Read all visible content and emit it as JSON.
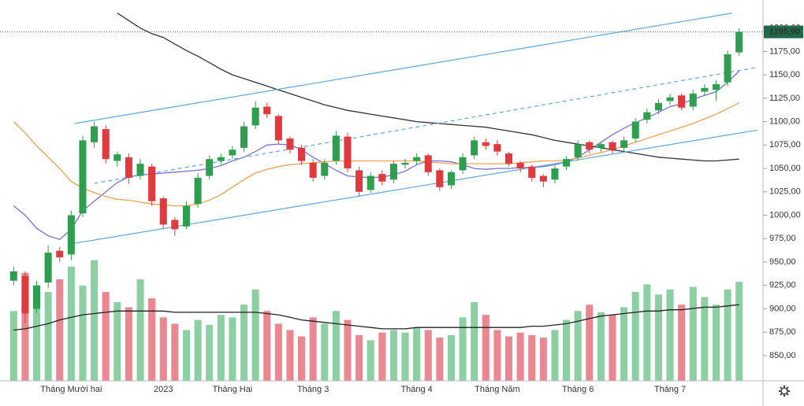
{
  "chart_data": {
    "type": "candlestick",
    "categories": [
      null,
      null,
      null,
      null,
      null,
      "Tháng Mười hai",
      null,
      null,
      null,
      null,
      null,
      null,
      null,
      "2023",
      null,
      null,
      null,
      null,
      null,
      "Tháng Hai",
      null,
      null,
      null,
      null,
      null,
      null,
      "Tháng 3",
      null,
      null,
      null,
      null,
      null,
      null,
      null,
      null,
      "Tháng 4",
      null,
      null,
      null,
      null,
      null,
      null,
      "Tháng Năm",
      null,
      null,
      null,
      null,
      null,
      null,
      "Tháng 6",
      null,
      null,
      null,
      null,
      null,
      null,
      null,
      "Tháng 7",
      null,
      null,
      null,
      null,
      null,
      null
    ],
    "open": [
      930,
      935,
      900,
      928,
      962,
      958,
      1002,
      1078,
      1092,
      1058,
      1062,
      1042,
      1052,
      1018,
      995,
      988,
      1012,
      1042,
      1058,
      1064,
      1072,
      1096,
      1116,
      1106,
      1082,
      1072,
      1056,
      1042,
      1058,
      1084,
      1048,
      1027,
      1044,
      1038,
      1054,
      1058,
      1064,
      1048,
      1032,
      1048,
      1064,
      1078,
      1076,
      1066,
      1056,
      1052,
      1042,
      1038,
      1052,
      1062,
      1078,
      1072,
      1078,
      1072,
      1082,
      1102,
      1112,
      1122,
      1128,
      1116,
      1132,
      1134,
      1142,
      1174
    ],
    "high": [
      945,
      940,
      930,
      968,
      966,
      1005,
      1085,
      1100,
      1096,
      1068,
      1066,
      1060,
      1055,
      1020,
      998,
      1015,
      1045,
      1064,
      1066,
      1074,
      1100,
      1122,
      1120,
      1108,
      1084,
      1075,
      1060,
      1060,
      1090,
      1088,
      1052,
      1046,
      1048,
      1058,
      1060,
      1066,
      1066,
      1050,
      1048,
      1066,
      1084,
      1082,
      1080,
      1068,
      1058,
      1054,
      1044,
      1053,
      1063,
      1080,
      1080,
      1078,
      1080,
      1084,
      1104,
      1114,
      1124,
      1130,
      1130,
      1134,
      1140,
      1144,
      1176,
      1200
    ],
    "low": [
      925,
      885,
      895,
      922,
      950,
      952,
      998,
      1072,
      1055,
      1052,
      1034,
      1038,
      1010,
      985,
      978,
      985,
      1008,
      1038,
      1054,
      1060,
      1068,
      1092,
      1104,
      1076,
      1066,
      1054,
      1036,
      1038,
      1054,
      1046,
      1020,
      1024,
      1032,
      1034,
      1050,
      1054,
      1042,
      1026,
      1028,
      1044,
      1060,
      1070,
      1064,
      1052,
      1046,
      1036,
      1030,
      1034,
      1048,
      1058,
      1066,
      1068,
      1066,
      1068,
      1078,
      1098,
      1108,
      1118,
      1112,
      1112,
      1128,
      1122,
      1138,
      1170
    ],
    "close": [
      940,
      895,
      925,
      960,
      955,
      1000,
      1080,
      1095,
      1060,
      1065,
      1040,
      1055,
      1015,
      990,
      985,
      1010,
      1040,
      1060,
      1062,
      1070,
      1095,
      1115,
      1108,
      1080,
      1070,
      1058,
      1040,
      1056,
      1085,
      1050,
      1025,
      1042,
      1036,
      1055,
      1056,
      1062,
      1046,
      1030,
      1046,
      1062,
      1080,
      1074,
      1068,
      1055,
      1050,
      1040,
      1036,
      1050,
      1060,
      1076,
      1070,
      1076,
      1070,
      1080,
      1100,
      1110,
      1120,
      1126,
      1115,
      1130,
      1136,
      1140,
      1172,
      1195.9
    ],
    "up_color": "#2e9e4f",
    "down_color": "#e0393e",
    "volume": {
      "axis": "y2",
      "up_color": "#8ccfa2",
      "down_color": "#ea8790",
      "values": [
        55,
        85,
        60,
        70,
        80,
        90,
        75,
        95,
        70,
        62,
        58,
        80,
        65,
        50,
        45,
        40,
        48,
        44,
        52,
        50,
        60,
        72,
        55,
        45,
        40,
        35,
        50,
        45,
        55,
        48,
        36,
        32,
        38,
        40,
        38,
        42,
        40,
        34,
        36,
        50,
        62,
        52,
        40,
        35,
        38,
        36,
        34,
        40,
        48,
        55,
        60,
        54,
        52,
        58,
        70,
        76,
        68,
        72,
        60,
        74,
        66,
        60,
        72,
        78
      ]
    },
    "volume_ma": {
      "axis": "y2",
      "color": "#222222",
      "values": [
        40,
        41,
        43,
        45,
        48,
        50,
        52,
        53,
        54,
        55,
        55,
        55,
        55,
        55,
        54,
        54,
        54,
        54,
        54,
        54,
        54,
        54,
        53,
        52,
        50,
        48,
        47,
        46,
        45,
        44,
        43,
        42,
        41,
        41,
        41,
        42,
        42,
        42,
        42,
        42,
        42,
        42,
        42,
        42,
        42,
        43,
        43,
        44,
        45,
        47,
        49,
        51,
        52,
        53,
        54,
        55,
        55,
        56,
        56,
        57,
        58,
        58,
        59,
        60
      ]
    },
    "moving_averages": [
      {
        "color": "#7b6fd6",
        "values": [
          1010,
          1000,
          986,
          978,
          974,
          985,
          1005,
          1015,
          1025,
          1035,
          1041,
          1043,
          1044,
          1045,
          1046,
          1047,
          1048,
          1050,
          1053,
          1058,
          1062,
          1068,
          1075,
          1076,
          1075,
          1070,
          1062,
          1055,
          1048,
          1042,
          1041,
          1040,
          1041,
          1043,
          1047,
          1054,
          1058,
          1058,
          1057,
          1054,
          1050,
          1049,
          1050,
          1050,
          1051,
          1051,
          1052,
          1054,
          1057,
          1062,
          1070,
          1078,
          1086,
          1093,
          1099,
          1104,
          1110,
          1116,
          1119,
          1124,
          1128,
          1132,
          1142,
          1154
        ]
      },
      {
        "color": "#f0a050",
        "values": [
          1100,
          1088,
          1074,
          1062,
          1050,
          1036,
          1029,
          1024,
          1020,
          1017,
          1016,
          1014,
          1012,
          1011,
          1010,
          1010,
          1012,
          1016,
          1022,
          1030,
          1038,
          1045,
          1049,
          1052,
          1054,
          1055,
          1056,
          1057,
          1058,
          1058,
          1058,
          1058,
          1058,
          1058,
          1058,
          1058,
          1057,
          1056,
          1055,
          1055,
          1055,
          1055,
          1055,
          1055,
          1056,
          1057,
          1058,
          1058,
          1059,
          1061,
          1064,
          1067,
          1070,
          1074,
          1078,
          1082,
          1086,
          1090,
          1094,
          1098,
          1103,
          1108,
          1114,
          1120
        ]
      },
      {
        "color": "#333333",
        "values": [
          null,
          null,
          null,
          null,
          null,
          null,
          null,
          null,
          null,
          1216,
          1208,
          1200,
          1194,
          1190,
          1183,
          1176,
          1170,
          1163,
          1156,
          1150,
          1146,
          1142,
          1138,
          1134,
          1130,
          1126,
          1122,
          1118,
          1115,
          1112,
          1110,
          1108,
          1106,
          1104,
          1102,
          1100,
          1099,
          1098,
          1097,
          1096,
          1095,
          1094,
          1092,
          1090,
          1088,
          1086,
          1083,
          1080,
          1078,
          1076,
          1074,
          1072,
          1070,
          1068,
          1066,
          1064,
          1062,
          1061,
          1060,
          1059,
          1058,
          1058,
          1059,
          1060
        ]
      }
    ],
    "trend_lines": [
      {
        "color": "#5aa6e6",
        "dashed": false,
        "x": [
          5.3,
          62.4
        ],
        "values": [
          1098,
          1216
        ]
      },
      {
        "color": "#5aa6e6",
        "dashed": true,
        "x": [
          7.0,
          64.6
        ],
        "values": [
          1034,
          1158
        ]
      },
      {
        "color": "#5aa6e6",
        "dashed": false,
        "x": [
          5.3,
          64.6
        ],
        "values": [
          970,
          1091
        ]
      }
    ],
    "last_price": {
      "value": 1195.9,
      "label": "1195,90",
      "color": "#1d6b45"
    },
    "ylim": [
      823,
      1230
    ],
    "yticks": [
      {
        "value": 850,
        "label": "850,00"
      },
      {
        "value": 875,
        "label": "875,00"
      },
      {
        "value": 900,
        "label": "900,00"
      },
      {
        "value": 925,
        "label": "925,00"
      },
      {
        "value": 950,
        "label": "950,00"
      },
      {
        "value": 975,
        "label": "975,00"
      },
      {
        "value": 1000,
        "label": "1000,00"
      },
      {
        "value": 1025,
        "label": "1025,00"
      },
      {
        "value": 1050,
        "label": "1050,00"
      },
      {
        "value": 1075,
        "label": "1075,00"
      },
      {
        "value": 1100,
        "label": "1100,00"
      },
      {
        "value": 1125,
        "label": "1125,00"
      },
      {
        "value": 1150,
        "label": "1150,00"
      },
      {
        "value": 1175,
        "label": "1175,00"
      },
      {
        "value": 1200,
        "label": "1200,00"
      }
    ],
    "y2lim": [
      0,
      300
    ]
  }
}
